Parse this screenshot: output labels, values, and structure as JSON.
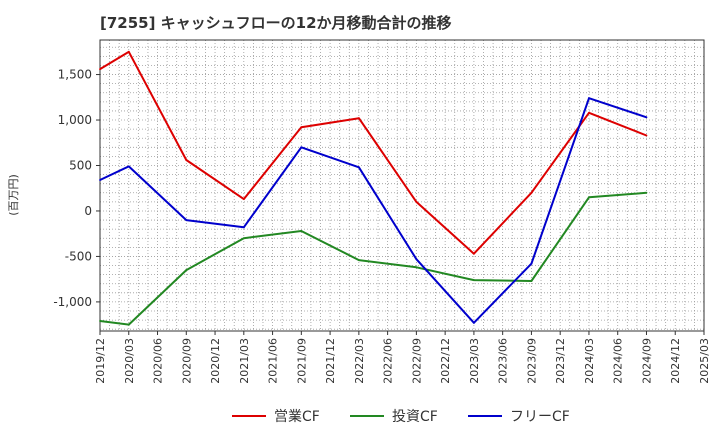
{
  "chart_data": {
    "type": "line",
    "title": "[7255]  キャッシュフローの12か月移動合計の推移",
    "ylabel": "(百万円)",
    "xlabel": "",
    "ylim": [
      -1320,
      1880
    ],
    "yticks": [
      -1000,
      -500,
      0,
      500,
      1000,
      1500
    ],
    "ytick_labels": [
      "-1,000",
      "-500",
      "0",
      "500",
      "1,000",
      "1,500"
    ],
    "categories": [
      "2019/12",
      "2020/03",
      "2020/06",
      "2020/09",
      "2020/12",
      "2021/03",
      "2021/06",
      "2021/09",
      "2021/12",
      "2022/03",
      "2022/06",
      "2022/09",
      "2022/12",
      "2023/03",
      "2023/06",
      "2023/09",
      "2023/12",
      "2024/03",
      "2024/06",
      "2024/09",
      "2024/12",
      "2025/03"
    ],
    "grid": true,
    "legend_position": "bottom",
    "series": [
      {
        "name": "営業CF",
        "color": "#dd0000",
        "points": [
          [
            0,
            1560
          ],
          [
            1,
            1750
          ],
          [
            3,
            560
          ],
          [
            5,
            130
          ],
          [
            7,
            920
          ],
          [
            9,
            1020
          ],
          [
            11,
            100
          ],
          [
            13,
            -470
          ],
          [
            15,
            200
          ],
          [
            17,
            1080
          ],
          [
            19,
            830
          ]
        ]
      },
      {
        "name": "投資CF",
        "color": "#228822",
        "points": [
          [
            0,
            -1210
          ],
          [
            1,
            -1250
          ],
          [
            3,
            -650
          ],
          [
            5,
            -300
          ],
          [
            7,
            -220
          ],
          [
            9,
            -540
          ],
          [
            11,
            -620
          ],
          [
            13,
            -760
          ],
          [
            15,
            -770
          ],
          [
            17,
            150
          ],
          [
            19,
            200
          ]
        ]
      },
      {
        "name": "フリーCF",
        "color": "#0000cc",
        "points": [
          [
            0,
            340
          ],
          [
            1,
            490
          ],
          [
            3,
            -100
          ],
          [
            5,
            -180
          ],
          [
            7,
            700
          ],
          [
            9,
            480
          ],
          [
            11,
            -530
          ],
          [
            13,
            -1230
          ],
          [
            15,
            -580
          ],
          [
            17,
            1240
          ],
          [
            19,
            1030
          ]
        ]
      }
    ]
  }
}
